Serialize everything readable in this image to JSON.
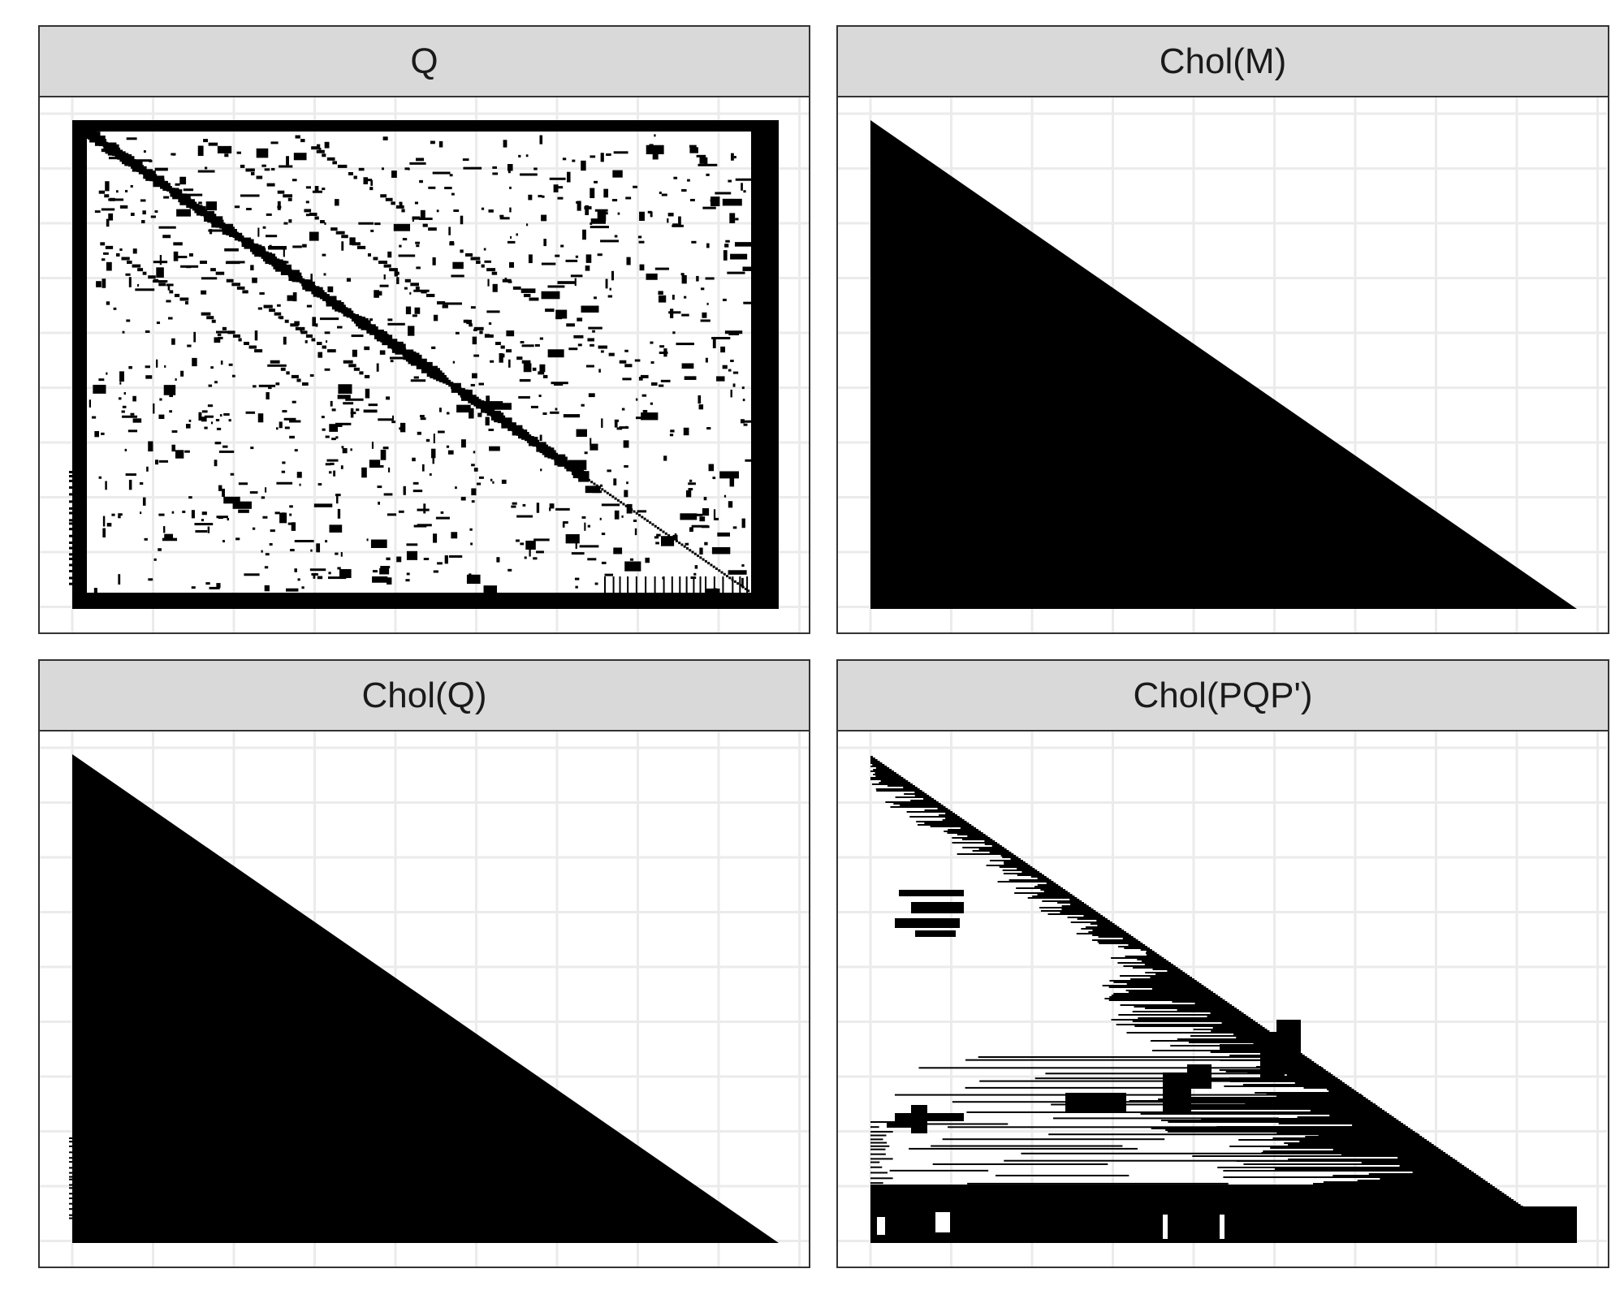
{
  "chart_data": [
    {
      "type": "heatmap",
      "title": "Q",
      "description_kind": "sparsity-pattern",
      "structure": "symmetric sparse matrix with banded diagonal and dense bordering rows/columns",
      "grid": true,
      "background": "#ffffff",
      "mark_color": "#000000"
    },
    {
      "type": "heatmap",
      "title": "Chol(M)",
      "description_kind": "sparsity-pattern",
      "structure": "full lower-triangular fill",
      "grid": true,
      "background": "#ffffff",
      "mark_color": "#000000"
    },
    {
      "type": "heatmap",
      "title": "Chol(Q)",
      "description_kind": "sparsity-pattern",
      "structure": "full lower-triangular fill",
      "grid": true,
      "background": "#ffffff",
      "mark_color": "#000000"
    },
    {
      "type": "heatmap",
      "title": "Chol(PQP')",
      "description_kind": "sparsity-pattern",
      "structure": "sparse lower-triangular fill after permutation",
      "grid": true,
      "background": "#ffffff",
      "mark_color": "#000000"
    }
  ],
  "colors": {
    "strip_bg": "#d9d9d9",
    "border": "#333333",
    "gridline": "#ebebeb",
    "mark": "#000000"
  }
}
